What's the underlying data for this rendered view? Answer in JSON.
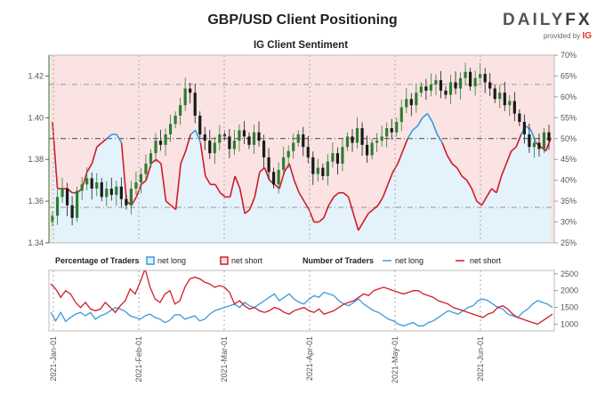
{
  "header": {
    "title": "GBP/USD Client Positioning",
    "subtitle": "IG Client Sentiment",
    "brand_name_a": "DAILY",
    "brand_name_b": "FX",
    "brand_tagline": "provided by",
    "brand_ig": "IG"
  },
  "colors": {
    "long": "#3a9ad9",
    "short": "#d01c2a",
    "long_fill": "#e3f2fb",
    "short_fill": "#fbe3e3",
    "candle_up": "#2e7d32",
    "candle_down": "#1a1a1a",
    "price_axis": "#2e7d32"
  },
  "chart_data": [
    {
      "type": "candlestick-sentiment",
      "title": "IG Client Sentiment",
      "price_axis": {
        "range": [
          1.34,
          1.43
        ],
        "ticks": [
          "1.42",
          "1.40",
          "1.38",
          "1.36",
          "1.34"
        ]
      },
      "percent_axis": {
        "range": [
          25,
          70
        ],
        "ticks": [
          "70%",
          "65%",
          "60%",
          "55%",
          "50%",
          "45%",
          "40%",
          "35%",
          "30%",
          "25%"
        ]
      },
      "reference_lines_percent": [
        63,
        50,
        33.5
      ],
      "price_close": [
        1.353,
        1.362,
        1.366,
        1.358,
        1.352,
        1.365,
        1.368,
        1.371,
        1.366,
        1.369,
        1.362,
        1.366,
        1.363,
        1.367,
        1.361,
        1.358,
        1.366,
        1.369,
        1.373,
        1.378,
        1.383,
        1.389,
        1.387,
        1.392,
        1.397,
        1.401,
        1.406,
        1.414,
        1.412,
        1.401,
        1.392,
        1.389,
        1.383,
        1.388,
        1.392,
        1.391,
        1.385,
        1.389,
        1.394,
        1.391,
        1.387,
        1.393,
        1.389,
        1.381,
        1.374,
        1.368,
        1.375,
        1.381,
        1.384,
        1.388,
        1.392,
        1.386,
        1.381,
        1.373,
        1.376,
        1.372,
        1.379,
        1.383,
        1.378,
        1.386,
        1.391,
        1.388,
        1.395,
        1.387,
        1.382,
        1.388,
        1.389,
        1.391,
        1.395,
        1.393,
        1.398,
        1.405,
        1.409,
        1.406,
        1.412,
        1.415,
        1.413,
        1.416,
        1.418,
        1.413,
        1.411,
        1.417,
        1.414,
        1.419,
        1.422,
        1.415,
        1.419,
        1.421,
        1.417,
        1.414,
        1.409,
        1.412,
        1.406,
        1.408,
        1.402,
        1.398,
        1.392,
        1.386,
        1.388,
        1.385,
        1.393,
        1.389
      ],
      "client_net_long_percent": [
        54,
        38,
        38,
        38,
        37,
        37,
        38,
        42,
        44,
        48,
        49,
        50,
        51,
        51,
        49,
        35,
        34,
        36,
        39,
        40,
        44,
        45,
        44,
        35,
        34,
        33,
        44,
        47,
        51,
        52,
        49,
        41,
        39,
        39,
        37,
        36,
        36,
        41,
        38,
        32,
        33,
        36,
        42,
        43,
        40,
        39,
        38,
        42,
        44,
        40,
        37,
        35,
        33,
        30,
        30,
        31,
        34,
        36,
        37,
        37,
        36,
        32,
        28,
        30,
        32,
        33,
        34,
        36,
        39,
        42,
        44,
        47,
        50,
        52,
        53,
        55,
        56,
        54,
        51,
        49,
        46,
        44,
        43,
        41,
        40,
        38,
        35,
        34,
        36,
        38,
        37,
        41,
        44,
        47,
        48,
        51,
        53,
        52,
        49,
        48,
        47,
        50
      ],
      "x_ticks": [
        "2021-Jan-01",
        "2021-Feb-01",
        "2021-Mar-01",
        "2021-Apr-01",
        "2021-May-01",
        "2021-Jun-01"
      ]
    },
    {
      "type": "line",
      "title": "Number of Traders",
      "y_range": [
        800,
        2600
      ],
      "y_ticks": [
        "2500",
        "2000",
        "1500",
        "1000"
      ],
      "series": [
        {
          "name": "net long",
          "values": [
            1350,
            1100,
            1350,
            1080,
            1200,
            1300,
            1350,
            1250,
            1350,
            1150,
            1250,
            1300,
            1400,
            1500,
            1450,
            1380,
            1250,
            1200,
            1150,
            1250,
            1300,
            1200,
            1150,
            1050,
            1120,
            1280,
            1280,
            1150,
            1200,
            1250,
            1100,
            1150,
            1300,
            1400,
            1450,
            1500,
            1550,
            1600,
            1500,
            1650,
            1550,
            1500,
            1600,
            1700,
            1800,
            1900,
            1700,
            1800,
            1900,
            1750,
            1650,
            1600,
            1750,
            1850,
            1800,
            1950,
            1900,
            1850,
            1700,
            1600,
            1550,
            1650,
            1750,
            1600,
            1500,
            1400,
            1350,
            1250,
            1150,
            1100,
            1000,
            950,
            1000,
            1050,
            950,
            950,
            1050,
            1100,
            1200,
            1300,
            1400,
            1350,
            1300,
            1400,
            1500,
            1550,
            1700,
            1750,
            1700,
            1600,
            1500,
            1450,
            1300,
            1250,
            1200,
            1350,
            1450,
            1600,
            1700,
            1650,
            1600,
            1500
          ]
        },
        {
          "name": "net short",
          "values": [
            2200,
            2050,
            1800,
            2000,
            1900,
            1650,
            1500,
            1650,
            1450,
            1400,
            1450,
            1650,
            1500,
            1350,
            1550,
            1700,
            2050,
            1900,
            2250,
            2650,
            2100,
            1750,
            1650,
            1900,
            2000,
            1600,
            1700,
            2100,
            2350,
            2400,
            2350,
            2250,
            2200,
            2100,
            2150,
            2100,
            1950,
            1600,
            1700,
            1550,
            1450,
            1500,
            1400,
            1350,
            1400,
            1500,
            1450,
            1350,
            1300,
            1400,
            1450,
            1500,
            1400,
            1350,
            1450,
            1300,
            1350,
            1400,
            1500,
            1600,
            1650,
            1700,
            1800,
            1900,
            1850,
            2000,
            2050,
            2100,
            2050,
            2000,
            1950,
            1900,
            1950,
            2000,
            2000,
            1900,
            1850,
            1800,
            1700,
            1650,
            1600,
            1500,
            1450,
            1400,
            1350,
            1300,
            1250,
            1200,
            1300,
            1350,
            1500,
            1550,
            1450,
            1300,
            1200,
            1150,
            1100,
            1050,
            1000,
            1100,
            1200,
            1300
          ]
        }
      ]
    }
  ],
  "legend": {
    "pct_heading": "Percentage of Traders",
    "pct_long": "net long",
    "pct_short": "net short",
    "num_heading": "Number of Traders",
    "num_long": "net long",
    "num_short": "net short"
  }
}
